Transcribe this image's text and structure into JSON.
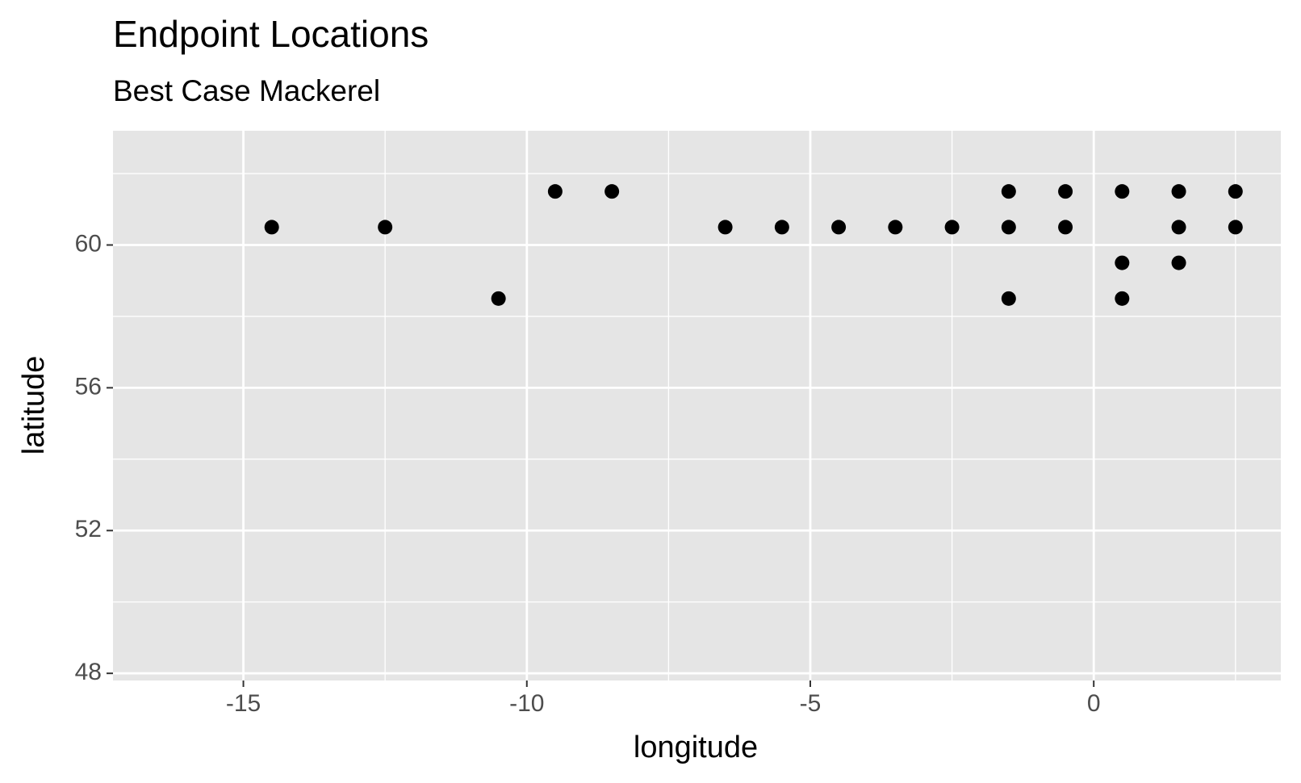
{
  "chart_data": {
    "type": "scatter",
    "title": "Endpoint Locations",
    "subtitle": "Best Case Mackerel",
    "x_label": "longitude",
    "y_label": "latitude",
    "series": [
      {
        "color": "#000000",
        "x": [
          -14.5,
          -12.5,
          -6.5,
          -5.5,
          -4.5,
          -3.5,
          -2.5,
          -1.5,
          -0.5,
          1.5,
          2.5,
          -9.5,
          -8.5,
          -1.5,
          -0.5,
          0.5,
          1.5,
          2.5,
          0.5,
          1.5,
          -10.5,
          -1.5,
          0.5
        ],
        "values": [
          60.5,
          60.5,
          60.5,
          60.5,
          60.5,
          60.5,
          60.5,
          60.5,
          60.5,
          60.5,
          60.5,
          61.5,
          61.5,
          61.5,
          61.5,
          61.5,
          61.5,
          61.5,
          59.5,
          59.5,
          58.5,
          58.5,
          58.5
        ]
      }
    ],
    "xlim": [
      -17.3,
      3.3
    ],
    "ylim": [
      47.8,
      63.2
    ],
    "xticks": [
      -15,
      -10,
      -5,
      0
    ],
    "yticks": [
      48,
      52,
      56,
      60
    ],
    "x_minor_grid": [
      -12.5,
      -7.5,
      -2.5,
      2.5
    ],
    "y_minor_grid": [
      50,
      54,
      58,
      62
    ],
    "grid": true,
    "panel_color": "#e5e5e5"
  }
}
